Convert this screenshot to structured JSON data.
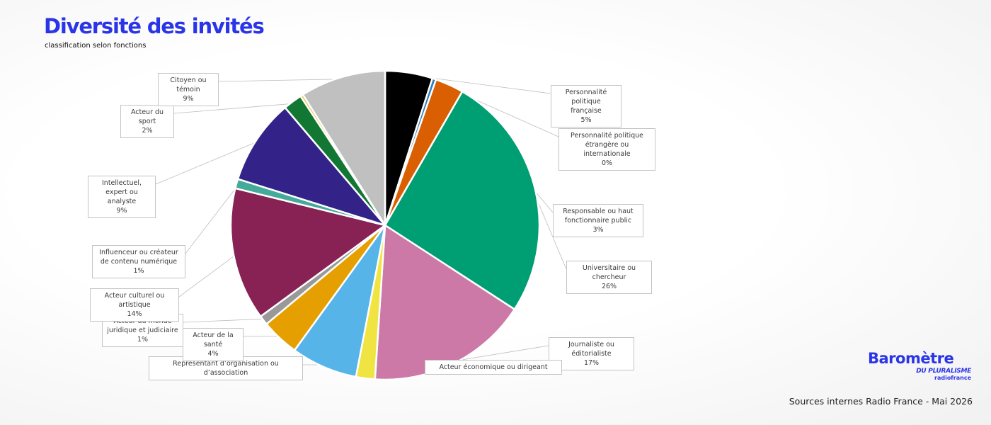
{
  "header": {
    "title": "Diversité des invités",
    "subtitle": "classification selon fonctions"
  },
  "footer": {
    "source": "Sources internes Radio France - Mai 2026",
    "logo_line1": "Baromètre",
    "logo_line2": "DU PLURALISME",
    "logo_line3": "radiofrance"
  },
  "chart_data": {
    "type": "pie",
    "slices": [
      {
        "label": "Personnalité politique française",
        "value": 5,
        "value_label": "5%",
        "color": "#000000"
      },
      {
        "label": "Personnalité politique étrangère ou internationale",
        "value": 0.4,
        "value_label": "0%",
        "color": "#2b7cbf"
      },
      {
        "label": "Responsable ou haut fonctionnaire public",
        "value": 3,
        "value_label": "3%",
        "color": "#d95f02"
      },
      {
        "label": "Universitaire ou chercheur",
        "value": 26,
        "value_label": "26%",
        "color": "#009e73"
      },
      {
        "label": "Journaliste ou éditorialiste",
        "value": 17,
        "value_label": "17%",
        "color": "#cc79a7"
      },
      {
        "label": "Acteur économique ou dirigeant",
        "value": 2,
        "value_label": "",
        "color": "#f0e442"
      },
      {
        "label": "Représentant d’organisation ou d’association",
        "value": 7,
        "value_label": "",
        "color": "#56b4e9"
      },
      {
        "label": "Acteur de la santé",
        "value": 4,
        "value_label": "4%",
        "color": "#e69f00"
      },
      {
        "label": "Acteur du monde juridique et judiciaire",
        "value": 1,
        "value_label": "1%",
        "color": "#999999"
      },
      {
        "label": "Acteur culturel ou artistique",
        "value": 14,
        "value_label": "14%",
        "color": "#882255"
      },
      {
        "label": "Influenceur ou créateur de contenu numérique",
        "value": 1,
        "value_label": "1%",
        "color": "#44aa99"
      },
      {
        "label": "Intellectuel, expert ou analyste",
        "value": 9,
        "value_label": "9%",
        "color": "#332288"
      },
      {
        "label": "Acteur du sport",
        "value": 2,
        "value_label": "2%",
        "color": "#117733"
      },
      {
        "label": "",
        "value": 0.3,
        "value_label": "",
        "color": "#e8c547"
      },
      {
        "label": "Citoyen ou témoin",
        "value": 9,
        "value_label": "9%",
        "color": "#c0c0c0"
      }
    ]
  }
}
